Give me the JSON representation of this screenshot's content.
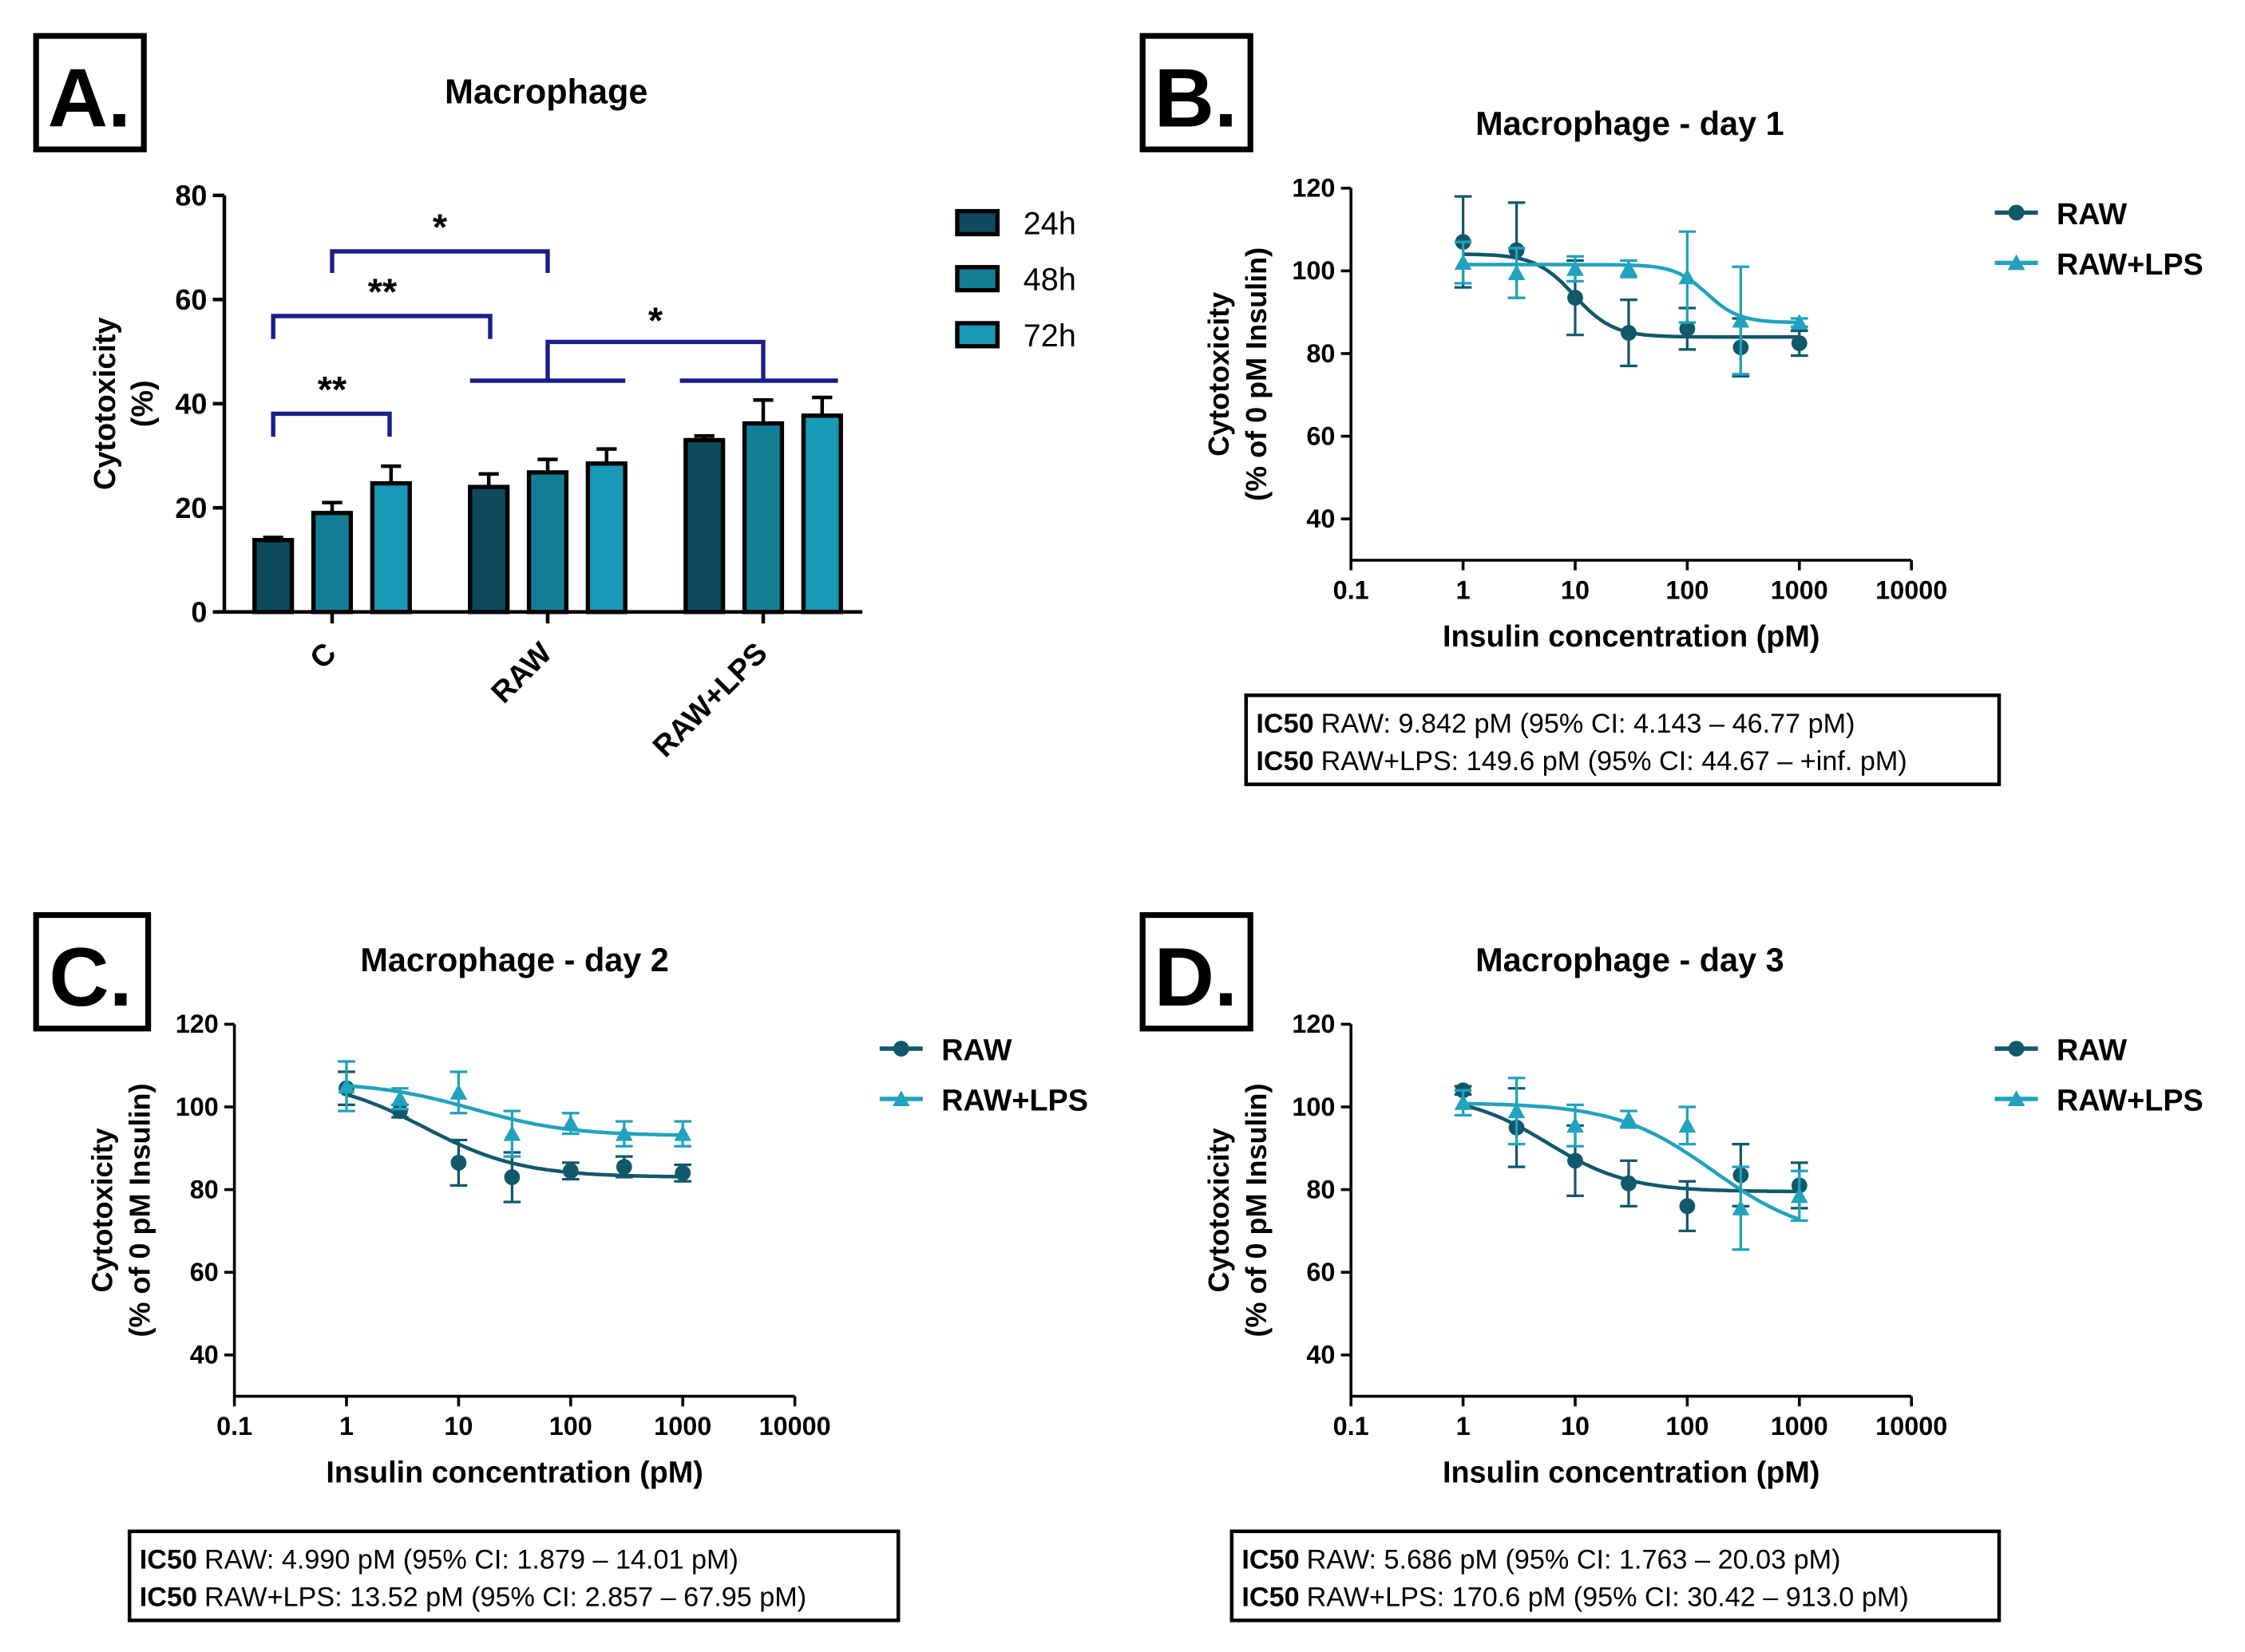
{
  "colors": {
    "c24": "#0d4a5e",
    "c48": "#137f97",
    "c72": "#1899b6",
    "raw": "#11586b",
    "lps": "#21a2bd",
    "bracket": "#1a1e8c"
  },
  "panel_a": {
    "letter": "A.",
    "sig": [
      "*",
      "**",
      "*",
      "**"
    ]
  },
  "panel_b": {
    "letter": "B.",
    "ic50_label": "IC50",
    "ic50_raw": "RAW: 9.842 pM (95% CI: 4.143 – 46.77 pM)",
    "ic50_lps": "RAW+LPS: 149.6 pM (95% CI: 44.67 – +inf. pM)"
  },
  "panel_c": {
    "letter": "C.",
    "ic50_label": "IC50",
    "ic50_raw": "RAW: 4.990 pM (95% CI: 1.879 – 14.01 pM)",
    "ic50_lps": "RAW+LPS: 13.52 pM (95% CI: 2.857 – 67.95 pM)"
  },
  "panel_d": {
    "letter": "D.",
    "ic50_label": "IC50",
    "ic50_raw": "RAW: 5.686 pM (95% CI: 1.763 – 20.03 pM)",
    "ic50_lps": "RAW+LPS: 170.6 pM (95% CI: 30.42 – 913.0 pM)"
  },
  "chart_data": [
    {
      "type": "bar",
      "id": "A",
      "title": "Macrophage",
      "ylabel": "Cytotoxicity\n(%)",
      "xlabel": "",
      "ylim": [
        0,
        80
      ],
      "yticks": [
        "0",
        "20",
        "40",
        "60",
        "80"
      ],
      "categories": [
        "C",
        "RAW",
        "RAW+LPS"
      ],
      "series": [
        {
          "name": "24h",
          "values": [
            13.8,
            24.0,
            33.0
          ],
          "errors": [
            0.5,
            2.5,
            0.8
          ]
        },
        {
          "name": "48h",
          "values": [
            19.0,
            26.8,
            36.2
          ],
          "errors": [
            2.0,
            2.5,
            4.5
          ]
        },
        {
          "name": "72h",
          "values": [
            24.7,
            28.5,
            37.7
          ],
          "errors": [
            3.3,
            2.8,
            3.5
          ]
        }
      ],
      "significance": [
        {
          "label": "**",
          "from": "C 24h",
          "to": "C 72h"
        },
        {
          "label": "**",
          "from": "C 24h",
          "to": "RAW 24h"
        },
        {
          "label": "*",
          "from": "C 48h",
          "to": "RAW 48h"
        },
        {
          "label": "*",
          "from": "RAW group",
          "to": "RAW+LPS group"
        }
      ],
      "legend": "right"
    },
    {
      "type": "scatter",
      "id": "B",
      "title": "Macrophage - day 1",
      "ylabel_lines": [
        "Cytotoxicity",
        "(% of 0 pM Insulin)"
      ],
      "xlabel": "Insulin concentration (pM)",
      "xscale": "log",
      "xlim": [
        0.1,
        10000
      ],
      "ylim": [
        30,
        120
      ],
      "xticks": [
        "0.1",
        "1",
        "10",
        "100",
        "1000",
        "10000"
      ],
      "yticks": [
        "40",
        "60",
        "80",
        "100",
        "120"
      ],
      "x": [
        1,
        3,
        10,
        30,
        100,
        300,
        1000
      ],
      "series": [
        {
          "name": "RAW",
          "marker": "circle",
          "values": [
            107,
            105,
            93.5,
            85,
            86,
            81.5,
            82.5
          ],
          "errors": [
            11,
            11.5,
            9,
            8,
            5,
            7,
            3
          ],
          "fit": {
            "top": 104.1,
            "bottom": 84,
            "ic50": 9.842,
            "hill": -2.5
          }
        },
        {
          "name": "RAW+LPS",
          "marker": "triangle",
          "values": [
            102,
            99.5,
            100.5,
            100.5,
            98.5,
            88,
            87.5
          ],
          "errors": [
            5,
            6,
            3,
            2,
            11,
            13,
            1
          ],
          "fit": {
            "top": 101.5,
            "bottom": 87.5,
            "ic50": 149.6,
            "hill": -3
          }
        }
      ],
      "legend": "top-right"
    },
    {
      "type": "scatter",
      "id": "C",
      "title": "Macrophage - day 2",
      "ylabel_lines": [
        "Cytotoxicity",
        "(% of 0 pM Insulin)"
      ],
      "xlabel": "Insulin concentration (pM)",
      "xscale": "log",
      "xlim": [
        0.1,
        10000
      ],
      "ylim": [
        30,
        120
      ],
      "xticks": [
        "0.1",
        "1",
        "10",
        "100",
        "1000",
        "10000"
      ],
      "yticks": [
        "40",
        "60",
        "80",
        "100",
        "120"
      ],
      "x": [
        1,
        3,
        10,
        30,
        100,
        300,
        1000
      ],
      "series": [
        {
          "name": "RAW",
          "marker": "circle",
          "values": [
            104.5,
            99,
            86.5,
            83,
            84.5,
            85.5,
            84
          ],
          "errors": [
            4,
            1.5,
            5.5,
            6,
            2,
            2.5,
            2
          ],
          "fit": {
            "top": 107,
            "bottom": 83,
            "ic50": 4.99,
            "hill": -1
          }
        },
        {
          "name": "RAW+LPS",
          "marker": "triangle",
          "values": [
            105,
            102,
            103.5,
            93.5,
            96,
            93.5,
            93.5
          ],
          "errors": [
            6,
            2.5,
            5,
            5.5,
            2.5,
            3,
            3
          ],
          "fit": {
            "top": 106,
            "bottom": 93,
            "ic50": 13.52,
            "hill": -1
          }
        }
      ],
      "legend": "top-right"
    },
    {
      "type": "scatter",
      "id": "D",
      "title": "Macrophage - day 3",
      "ylabel_lines": [
        "Cytotoxicity",
        "(% of 0 pM Insulin)"
      ],
      "xlabel": "Insulin concentration (pM)",
      "xscale": "log",
      "xlim": [
        0.1,
        10000
      ],
      "ylim": [
        30,
        120
      ],
      "xticks": [
        "0.1",
        "1",
        "10",
        "100",
        "1000",
        "10000"
      ],
      "yticks": [
        "40",
        "60",
        "80",
        "100",
        "120"
      ],
      "x": [
        1,
        3,
        10,
        30,
        100,
        300,
        1000
      ],
      "series": [
        {
          "name": "RAW",
          "marker": "circle",
          "values": [
            104,
            95,
            87,
            81.5,
            76,
            83.5,
            81
          ],
          "errors": [
            1,
            9.5,
            8.5,
            5.5,
            6,
            7.5,
            5.5
          ],
          "fit": {
            "top": 103,
            "bottom": 79.5,
            "ic50": 5.686,
            "hill": -1.2
          }
        },
        {
          "name": "RAW+LPS",
          "marker": "triangle",
          "values": [
            101,
            99,
            95.5,
            97,
            95.5,
            75.5,
            78.5
          ],
          "errors": [
            3,
            8,
            5,
            2,
            4.5,
            10,
            6
          ],
          "fit": {
            "top": 101,
            "bottom": 68,
            "ic50": 170.6,
            "hill": -1
          }
        }
      ],
      "legend": "top-right"
    }
  ]
}
